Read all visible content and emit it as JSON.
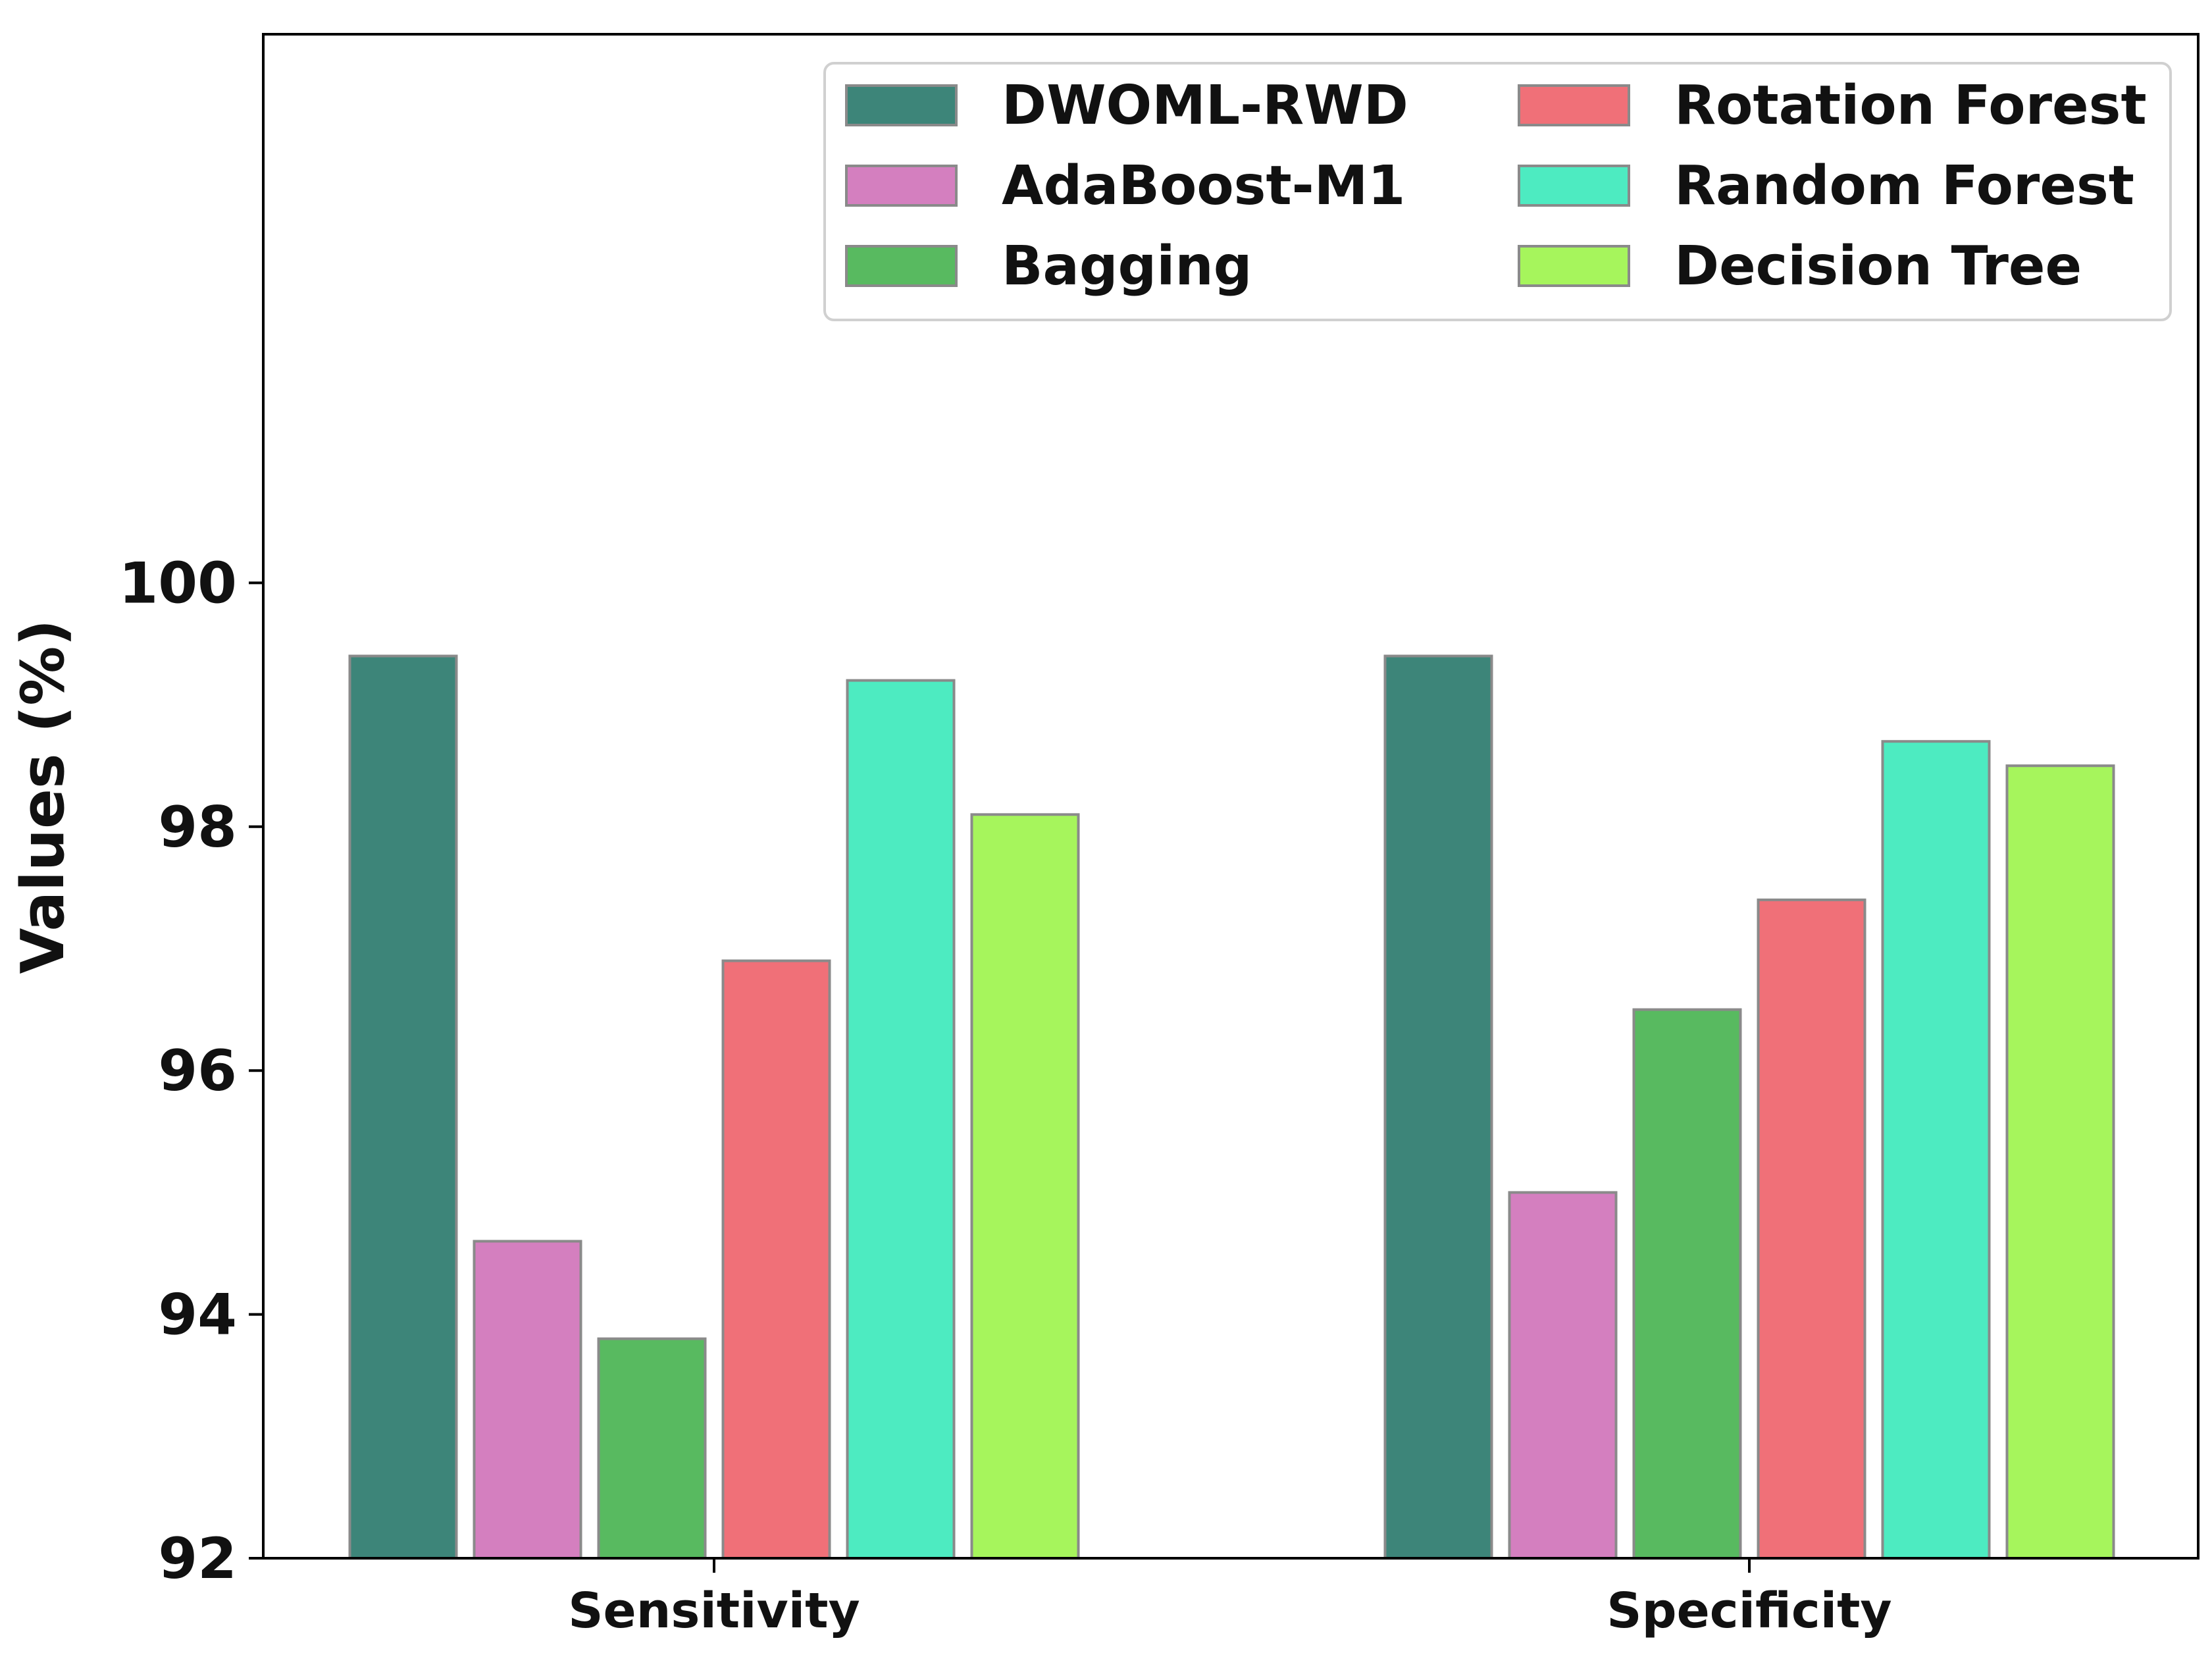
{
  "chart_data": {
    "type": "bar",
    "title": "",
    "xlabel": "",
    "ylabel": "Values (%)",
    "ylim": [
      92,
      104.5
    ],
    "yticks": [
      "92",
      "94",
      "96",
      "98",
      "100"
    ],
    "categories": [
      "Sensitivity",
      "Specificity"
    ],
    "legend_position": "top-right",
    "series": [
      {
        "name": "DWOML-RWD",
        "color": "#3d8579",
        "values": [
          99.4,
          99.4
        ]
      },
      {
        "name": "AdaBoost-M1",
        "color": "#d47fbf",
        "values": [
          94.6,
          95.0
        ]
      },
      {
        "name": "Bagging",
        "color": "#58ba60",
        "values": [
          93.8,
          96.5
        ]
      },
      {
        "name": "Rotation Forest",
        "color": "#f07078",
        "values": [
          96.9,
          97.4
        ]
      },
      {
        "name": "Random Forest",
        "color": "#4debc1",
        "values": [
          99.2,
          98.7
        ]
      },
      {
        "name": "Decision Tree",
        "color": "#a6f55c",
        "values": [
          98.1,
          98.5
        ]
      }
    ]
  }
}
